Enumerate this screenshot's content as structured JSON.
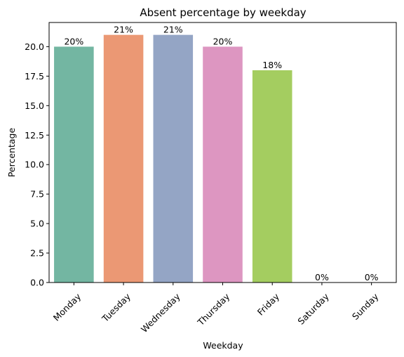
{
  "chart_data": {
    "type": "bar",
    "title": "Absent percentage by weekday",
    "xlabel": "Weekday",
    "ylabel": "Percentage",
    "categories": [
      "Monday",
      "Tuesday",
      "Wednesday",
      "Thursday",
      "Friday",
      "Saturday",
      "Sunday"
    ],
    "values": [
      20,
      21,
      21,
      20,
      18,
      0,
      0
    ],
    "data_labels": [
      "20%",
      "21%",
      "21%",
      "20%",
      "18%",
      "0%",
      "0%"
    ],
    "colors": [
      "#73b6a2",
      "#eb9874",
      "#94a5c5",
      "#dd96c1",
      "#a4cd60",
      "#ffd92f",
      "#e5c494"
    ],
    "ylim": [
      0,
      22.05
    ],
    "yticks": [
      "0.0",
      "2.5",
      "5.0",
      "7.5",
      "10.0",
      "12.5",
      "15.0",
      "17.5",
      "20.0"
    ],
    "grid": false,
    "legend": "none"
  }
}
